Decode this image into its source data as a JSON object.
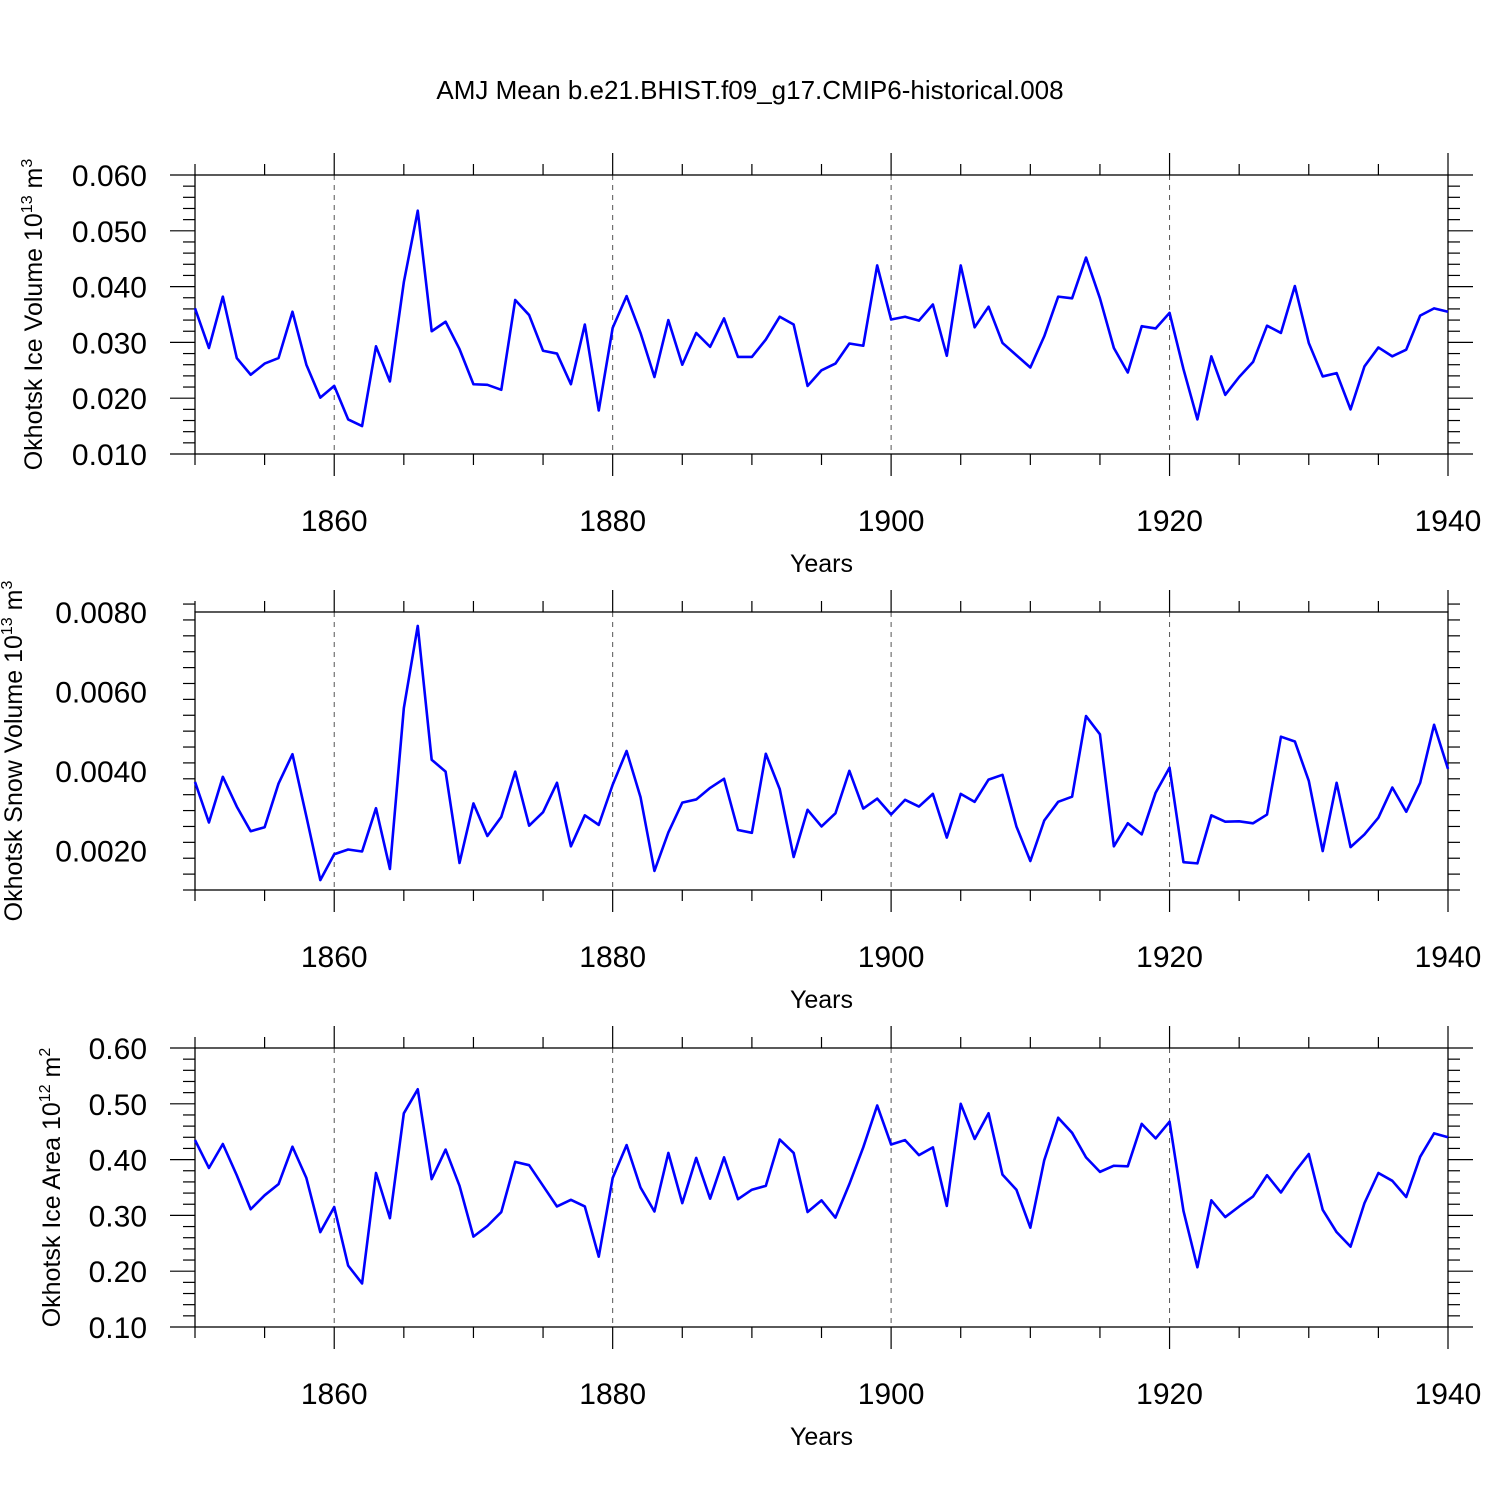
{
  "figure": {
    "title": "AMJ Mean b.e21.BHIST.f09_g17.CMIP6-historical.008",
    "line_color": "#0000ff",
    "grid_color": "#555555"
  },
  "chart_data": [
    {
      "type": "line",
      "title": "AMJ Mean b.e21.BHIST.f09_g17.CMIP6-historical.008",
      "xlabel": "Years",
      "ylabel_main": "Okhotsk Ice Volume 10",
      "ylabel_exp": "13",
      "ylabel_unit": "m",
      "ylabel_unit_exp": "3",
      "xlim": [
        1850,
        1940
      ],
      "ylim": [
        0.01,
        0.06
      ],
      "xticks": [
        1860,
        1880,
        1900,
        1920,
        1940
      ],
      "xtick_labels": [
        "1860",
        "1880",
        "1900",
        "1920",
        "1940"
      ],
      "yticks": [
        0.01,
        0.02,
        0.03,
        0.04,
        0.05,
        0.06
      ],
      "ytick_labels": [
        "0.010",
        "0.020",
        "0.030",
        "0.040",
        "0.050",
        "0.060"
      ],
      "grid": "vertical dashed at major x ticks",
      "series": [
        {
          "x_start": 1850,
          "values": [
            0.0361,
            0.029,
            0.0382,
            0.0272,
            0.0242,
            0.0262,
            0.0272,
            0.0355,
            0.026,
            0.0201,
            0.0222,
            0.0162,
            0.015,
            0.0293,
            0.023,
            0.0408,
            0.0536,
            0.032,
            0.0337,
            0.0288,
            0.0225,
            0.0224,
            0.0215,
            0.0376,
            0.0349,
            0.0285,
            0.028,
            0.0225,
            0.0332,
            0.0178,
            0.0326,
            0.0383,
            0.0317,
            0.0238,
            0.034,
            0.026,
            0.0317,
            0.0292,
            0.0343,
            0.0274,
            0.0274,
            0.0305,
            0.0346,
            0.0332,
            0.0222,
            0.025,
            0.0262,
            0.0298,
            0.0294,
            0.0438,
            0.0341,
            0.0346,
            0.0339,
            0.0368,
            0.0276,
            0.0438,
            0.0327,
            0.0364,
            0.0299,
            0.0277,
            0.0255,
            0.0311,
            0.0382,
            0.0379,
            0.0452,
            0.0379,
            0.029,
            0.0246,
            0.0329,
            0.0325,
            0.0353,
            0.0252,
            0.0162,
            0.0275,
            0.0206,
            0.0238,
            0.0265,
            0.033,
            0.0317,
            0.0401,
            0.0299,
            0.0239,
            0.0245,
            0.018,
            0.0257,
            0.0291,
            0.0275,
            0.0287,
            0.0348,
            0.0361,
            0.0355
          ]
        }
      ]
    },
    {
      "type": "line",
      "xlabel": "Years",
      "ylabel_main": "Okhotsk Snow Volume 10",
      "ylabel_exp": "13",
      "ylabel_unit": "m",
      "ylabel_unit_exp": "3",
      "xlim": [
        1850,
        1940
      ],
      "ylim": [
        0.001,
        0.008
      ],
      "xticks": [
        1860,
        1880,
        1900,
        1920,
        1940
      ],
      "xtick_labels": [
        "1860",
        "1880",
        "1900",
        "1920",
        "1940"
      ],
      "yticks": [
        0.002,
        0.004,
        0.006,
        0.008
      ],
      "ytick_labels": [
        "0.0020",
        "0.0040",
        "0.0060",
        "0.0080"
      ],
      "grid": "vertical dashed at major x ticks",
      "series": [
        {
          "x_start": 1850,
          "values": [
            0.00372,
            0.0027,
            0.00385,
            0.0031,
            0.00248,
            0.00258,
            0.00368,
            0.00442,
            0.00285,
            0.00125,
            0.0019,
            0.00202,
            0.00197,
            0.00306,
            0.00153,
            0.00558,
            0.00765,
            0.00428,
            0.00398,
            0.00168,
            0.00318,
            0.00236,
            0.00284,
            0.00398,
            0.00262,
            0.00296,
            0.0037,
            0.0021,
            0.00288,
            0.00264,
            0.00365,
            0.0045,
            0.00334,
            0.00148,
            0.00245,
            0.0032,
            0.00328,
            0.00357,
            0.0038,
            0.00251,
            0.00244,
            0.00443,
            0.00354,
            0.00183,
            0.00302,
            0.0026,
            0.00293,
            0.004,
            0.00305,
            0.0033,
            0.0029,
            0.00327,
            0.0031,
            0.00342,
            0.00232,
            0.00342,
            0.00322,
            0.00378,
            0.0039,
            0.0026,
            0.00173,
            0.00275,
            0.00322,
            0.00335,
            0.00538,
            0.00492,
            0.0021,
            0.00268,
            0.0024,
            0.00345,
            0.00408,
            0.0017,
            0.00167,
            0.00288,
            0.00272,
            0.00273,
            0.00268,
            0.0029,
            0.00486,
            0.00474,
            0.00375,
            0.00198,
            0.0037,
            0.00208,
            0.0024,
            0.00282,
            0.00358,
            0.00297,
            0.0037,
            0.00516,
            0.00405
          ]
        }
      ]
    },
    {
      "type": "line",
      "xlabel": "Years",
      "ylabel_main": "Okhotsk Ice Area 10",
      "ylabel_exp": "12",
      "ylabel_unit": "m",
      "ylabel_unit_exp": "2",
      "xlim": [
        1850,
        1940
      ],
      "ylim": [
        0.1,
        0.6
      ],
      "xticks": [
        1860,
        1880,
        1900,
        1920,
        1940
      ],
      "xtick_labels": [
        "1860",
        "1880",
        "1900",
        "1920",
        "1940"
      ],
      "yticks": [
        0.1,
        0.2,
        0.3,
        0.4,
        0.5,
        0.6
      ],
      "ytick_labels": [
        "0.10",
        "0.20",
        "0.30",
        "0.40",
        "0.50",
        "0.60"
      ],
      "grid": "vertical dashed at major x ticks",
      "series": [
        {
          "x_start": 1850,
          "values": [
            0.435,
            0.385,
            0.428,
            0.372,
            0.311,
            0.336,
            0.356,
            0.423,
            0.367,
            0.27,
            0.315,
            0.21,
            0.178,
            0.376,
            0.295,
            0.483,
            0.526,
            0.365,
            0.418,
            0.353,
            0.262,
            0.281,
            0.306,
            0.396,
            0.39,
            0.353,
            0.316,
            0.328,
            0.316,
            0.226,
            0.367,
            0.426,
            0.35,
            0.307,
            0.412,
            0.322,
            0.403,
            0.33,
            0.404,
            0.329,
            0.346,
            0.353,
            0.436,
            0.412,
            0.306,
            0.327,
            0.296,
            0.356,
            0.422,
            0.497,
            0.427,
            0.435,
            0.408,
            0.422,
            0.317,
            0.5,
            0.437,
            0.483,
            0.373,
            0.346,
            0.278,
            0.399,
            0.475,
            0.448,
            0.404,
            0.378,
            0.389,
            0.388,
            0.464,
            0.438,
            0.468,
            0.308,
            0.207,
            0.327,
            0.297,
            0.316,
            0.334,
            0.372,
            0.341,
            0.378,
            0.41,
            0.31,
            0.27,
            0.244,
            0.322,
            0.376,
            0.362,
            0.333,
            0.405,
            0.447,
            0.44
          ]
        }
      ]
    }
  ]
}
